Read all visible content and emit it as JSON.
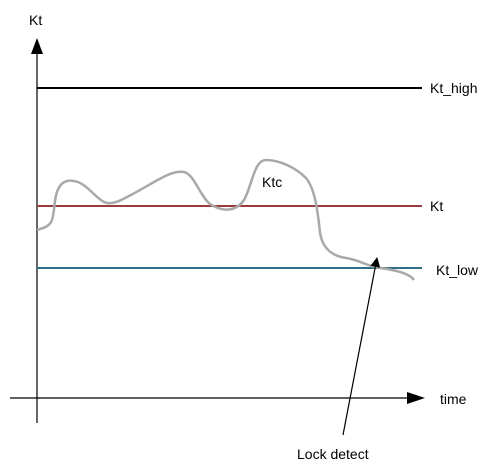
{
  "axes": {
    "y_label": "Kt",
    "x_label": "time"
  },
  "levels": {
    "high": {
      "label": "Kt_high",
      "color": "#000000"
    },
    "target": {
      "label": "Kt",
      "color": "#9b3b3f"
    },
    "low": {
      "label": "Kt_low",
      "color": "#2f6f86"
    }
  },
  "curve": {
    "label": "Ktc",
    "color": "#a9a9a9"
  },
  "annotation": {
    "label": "Lock detect"
  }
}
